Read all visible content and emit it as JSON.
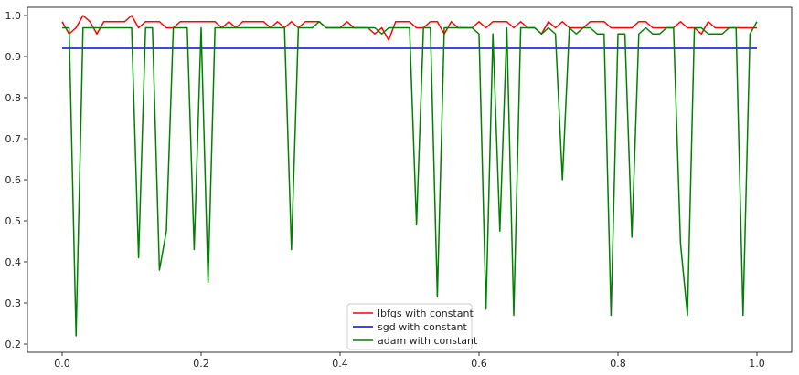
{
  "chart_data": {
    "type": "line",
    "title": "",
    "xlabel": "",
    "ylabel": "",
    "xlim": [
      -0.05,
      1.05
    ],
    "ylim": [
      0.18,
      1.02
    ],
    "xticks": [
      0.0,
      0.2,
      0.4,
      0.6,
      0.8,
      1.0
    ],
    "xtick_labels": [
      "0.0",
      "0.2",
      "0.4",
      "0.6",
      "0.8",
      "1.0"
    ],
    "yticks": [
      0.2,
      0.3,
      0.4,
      0.5,
      0.6,
      0.7,
      0.8,
      0.9,
      1.0
    ],
    "ytick_labels": [
      "0.2",
      "0.3",
      "0.4",
      "0.5",
      "0.6",
      "0.7",
      "0.8",
      "0.9",
      "1.0"
    ],
    "grid": false,
    "legend_position": "bottom-center",
    "x": [
      0.0,
      0.01,
      0.02,
      0.03,
      0.04,
      0.05,
      0.06,
      0.07,
      0.08,
      0.09,
      0.1,
      0.11,
      0.12,
      0.13,
      0.14,
      0.15,
      0.16,
      0.17,
      0.18,
      0.19,
      0.2,
      0.21,
      0.22,
      0.23,
      0.24,
      0.25,
      0.26,
      0.27,
      0.28,
      0.29,
      0.3,
      0.31,
      0.32,
      0.33,
      0.34,
      0.35,
      0.36,
      0.37,
      0.38,
      0.39,
      0.4,
      0.41,
      0.42,
      0.43,
      0.44,
      0.45,
      0.46,
      0.47,
      0.48,
      0.49,
      0.5,
      0.51,
      0.52,
      0.53,
      0.54,
      0.55,
      0.56,
      0.57,
      0.58,
      0.59,
      0.6,
      0.61,
      0.62,
      0.63,
      0.64,
      0.65,
      0.66,
      0.67,
      0.68,
      0.69,
      0.7,
      0.71,
      0.72,
      0.73,
      0.74,
      0.75,
      0.76,
      0.77,
      0.78,
      0.79,
      0.8,
      0.81,
      0.82,
      0.83,
      0.84,
      0.85,
      0.86,
      0.87,
      0.88,
      0.89,
      0.9,
      0.91,
      0.92,
      0.93,
      0.94,
      0.95,
      0.96,
      0.97,
      0.98,
      0.99,
      1.0
    ],
    "series": [
      {
        "name": "lbfgs with constant",
        "color": "#ff0000",
        "values": [
          0.985,
          0.955,
          0.97,
          1.0,
          0.985,
          0.955,
          0.985,
          0.985,
          0.985,
          0.985,
          1.0,
          0.97,
          0.985,
          0.985,
          0.985,
          0.97,
          0.97,
          0.985,
          0.985,
          0.985,
          0.985,
          0.985,
          0.985,
          0.97,
          0.985,
          0.97,
          0.985,
          0.985,
          0.985,
          0.985,
          0.97,
          0.985,
          0.97,
          0.985,
          0.97,
          0.985,
          0.985,
          0.985,
          0.97,
          0.97,
          0.97,
          0.985,
          0.97,
          0.97,
          0.97,
          0.955,
          0.97,
          0.94,
          0.985,
          0.985,
          0.985,
          0.97,
          0.97,
          0.985,
          0.985,
          0.955,
          0.985,
          0.97,
          0.97,
          0.97,
          0.985,
          0.97,
          0.985,
          0.985,
          0.985,
          0.97,
          0.985,
          0.97,
          0.97,
          0.955,
          0.985,
          0.97,
          0.985,
          0.97,
          0.97,
          0.97,
          0.985,
          0.985,
          0.985,
          0.97,
          0.97,
          0.97,
          0.97,
          0.985,
          0.985,
          0.97,
          0.97,
          0.97,
          0.97,
          0.985,
          0.97,
          0.97,
          0.955,
          0.985,
          0.97,
          0.97,
          0.97,
          0.97,
          0.97,
          0.97,
          0.97
        ]
      },
      {
        "name": "sgd with constant",
        "color": "#0000ff",
        "values": [
          0.92,
          0.92,
          0.92,
          0.92,
          0.92,
          0.92,
          0.92,
          0.92,
          0.92,
          0.92,
          0.92,
          0.92,
          0.92,
          0.92,
          0.92,
          0.92,
          0.92,
          0.92,
          0.92,
          0.92,
          0.92,
          0.92,
          0.92,
          0.92,
          0.92,
          0.92,
          0.92,
          0.92,
          0.92,
          0.92,
          0.92,
          0.92,
          0.92,
          0.92,
          0.92,
          0.92,
          0.92,
          0.92,
          0.92,
          0.92,
          0.92,
          0.92,
          0.92,
          0.92,
          0.92,
          0.92,
          0.92,
          0.92,
          0.92,
          0.92,
          0.92,
          0.92,
          0.92,
          0.92,
          0.92,
          0.92,
          0.92,
          0.92,
          0.92,
          0.92,
          0.92,
          0.92,
          0.92,
          0.92,
          0.92,
          0.92,
          0.92,
          0.92,
          0.92,
          0.92,
          0.92,
          0.92,
          0.92,
          0.92,
          0.92,
          0.92,
          0.92,
          0.92,
          0.92,
          0.92,
          0.92,
          0.92,
          0.92,
          0.92,
          0.92,
          0.92,
          0.92,
          0.92,
          0.92,
          0.92,
          0.92,
          0.92,
          0.92,
          0.92,
          0.92,
          0.92,
          0.92,
          0.92,
          0.92,
          0.92,
          0.92
        ]
      },
      {
        "name": "adam with constant",
        "color": "#008000",
        "values": [
          0.97,
          0.97,
          0.22,
          0.97,
          0.97,
          0.97,
          0.97,
          0.97,
          0.97,
          0.97,
          0.97,
          0.41,
          0.97,
          0.97,
          0.38,
          0.475,
          0.97,
          0.97,
          0.97,
          0.43,
          0.97,
          0.35,
          0.97,
          0.97,
          0.97,
          0.97,
          0.97,
          0.97,
          0.97,
          0.97,
          0.97,
          0.97,
          0.97,
          0.43,
          0.97,
          0.97,
          0.97,
          0.985,
          0.97,
          0.97,
          0.97,
          0.97,
          0.97,
          0.97,
          0.97,
          0.97,
          0.955,
          0.97,
          0.97,
          0.97,
          0.97,
          0.49,
          0.97,
          0.97,
          0.315,
          0.97,
          0.97,
          0.97,
          0.97,
          0.97,
          0.955,
          0.285,
          0.955,
          0.475,
          0.97,
          0.27,
          0.97,
          0.97,
          0.97,
          0.955,
          0.97,
          0.955,
          0.6,
          0.97,
          0.955,
          0.97,
          0.97,
          0.955,
          0.955,
          0.27,
          0.955,
          0.955,
          0.46,
          0.955,
          0.97,
          0.955,
          0.955,
          0.97,
          0.97,
          0.445,
          0.27,
          0.97,
          0.97,
          0.955,
          0.955,
          0.955,
          0.97,
          0.97,
          0.27,
          0.955,
          0.985
        ]
      }
    ]
  }
}
